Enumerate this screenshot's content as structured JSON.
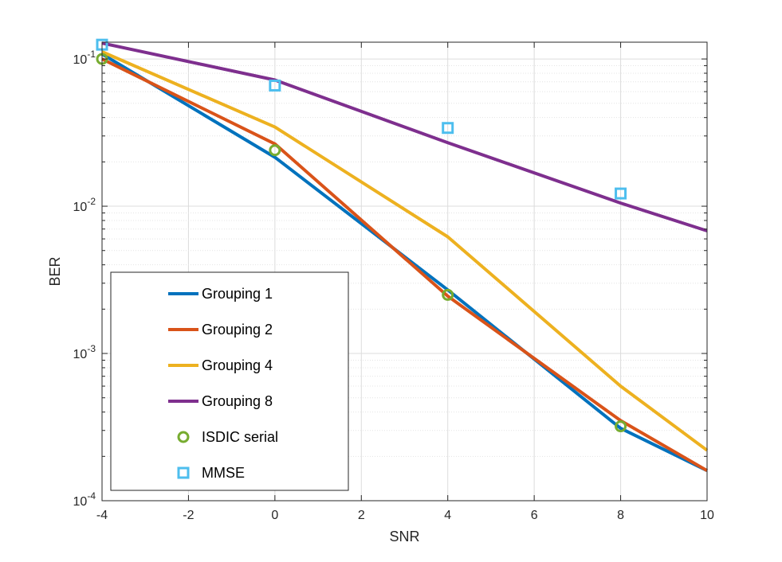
{
  "chart_data": {
    "type": "line",
    "title": "",
    "xlabel": "SNR",
    "ylabel": "BER",
    "xlim": [
      -4,
      10
    ],
    "ylim": [
      0.0001,
      0.13
    ],
    "yscale": "log",
    "grid": true,
    "minor_grid": true,
    "legend_position": "bottom-left",
    "xticks": [
      "-4",
      "-2",
      "0",
      "2",
      "4",
      "6",
      "8",
      "10"
    ],
    "yticks": [
      {
        "base": "10",
        "exp": "-1"
      },
      {
        "base": "10",
        "exp": "-2"
      },
      {
        "base": "10",
        "exp": "-3"
      },
      {
        "base": "10",
        "exp": "-4"
      }
    ],
    "series": [
      {
        "name": "Grouping 1",
        "style": "line",
        "color": "#0072BD",
        "x": [
          -4,
          0,
          4,
          8,
          10
        ],
        "y": [
          0.108,
          0.0215,
          0.0027,
          0.00031,
          0.00016
        ]
      },
      {
        "name": "Grouping 2",
        "style": "line",
        "color": "#D95319",
        "x": [
          -4,
          0,
          4,
          8,
          10
        ],
        "y": [
          0.1,
          0.0265,
          0.00245,
          0.00035,
          0.00016
        ]
      },
      {
        "name": "Grouping 4",
        "style": "line",
        "color": "#EDB120",
        "x": [
          -4,
          0,
          4,
          8,
          10
        ],
        "y": [
          0.112,
          0.0345,
          0.0062,
          0.0006,
          0.00022
        ]
      },
      {
        "name": "Grouping 8",
        "style": "line",
        "color": "#7E2F8E",
        "x": [
          -4,
          0,
          4,
          8,
          10
        ],
        "y": [
          0.128,
          0.072,
          0.027,
          0.0105,
          0.0068
        ]
      },
      {
        "name": "ISDIC serial",
        "style": "marker-circle",
        "color": "#77AC30",
        "x": [
          -4,
          0,
          4,
          8
        ],
        "y": [
          0.1,
          0.024,
          0.0025,
          0.00032
        ]
      },
      {
        "name": "MMSE",
        "style": "marker-square",
        "color": "#4DBEEE",
        "x": [
          -4,
          0,
          4,
          8
        ],
        "y": [
          0.125,
          0.066,
          0.034,
          0.0122
        ]
      }
    ]
  }
}
